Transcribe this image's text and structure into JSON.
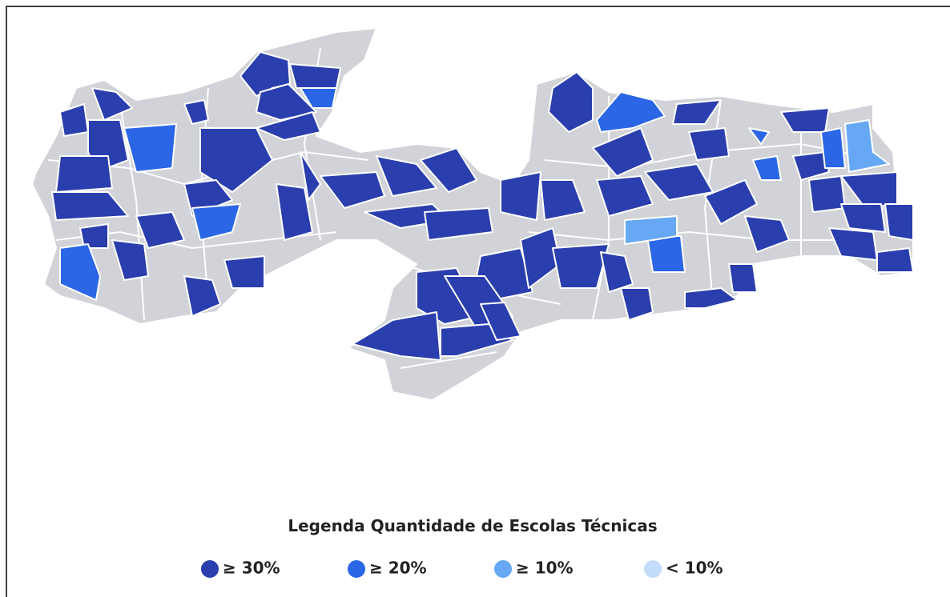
{
  "legend": {
    "title": "Legenda Quantidade de Escolas Técnicas",
    "items": [
      {
        "label": "≥ 30%",
        "color": "#2a3eae"
      },
      {
        "label": "≥ 20%",
        "color": "#2a66e6"
      },
      {
        "label": "≥ 10%",
        "color": "#66a8f4"
      },
      {
        "label": "< 10%",
        "color": "#c3dcfb"
      }
    ]
  }
}
